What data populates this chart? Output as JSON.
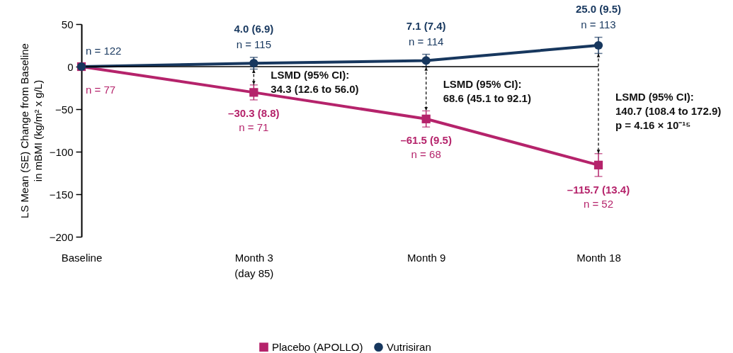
{
  "chart_data": {
    "type": "line",
    "ylabel": "LS Mean (SE) Change from Baseline\nin mBMI (kg/m² x g/L)",
    "categories": [
      "Baseline",
      "Month 3\n(day 85)",
      "Month 9",
      "Month 18"
    ],
    "ylim": [
      -200,
      50
    ],
    "yticks": [
      -200,
      -150,
      -100,
      -50,
      0,
      50
    ],
    "series": [
      {
        "name": "Placebo (APOLLO)",
        "color": "#b5236b",
        "marker": "square",
        "values": [
          0,
          -30.3,
          -61.5,
          -115.7
        ],
        "errors": [
          null,
          8.8,
          9.5,
          13.4
        ],
        "value_labels": [
          null,
          "–30.3 (8.8)",
          "–61.5 (9.5)",
          "–115.7 (13.4)"
        ]
      },
      {
        "name": "Vutrisiran",
        "color": "#17375e",
        "marker": "circle",
        "values": [
          0,
          4.0,
          7.1,
          25.0
        ],
        "errors": [
          null,
          6.9,
          7.4,
          9.5
        ],
        "value_labels": [
          null,
          "4.0 (6.9)",
          "7.1 (7.4)",
          "25.0 (9.5)"
        ]
      }
    ],
    "ref_lines": [
      {
        "axis": "y",
        "value": 0,
        "color": "#000000"
      }
    ],
    "annotations": [
      "n = 77",
      "n = 71",
      "n = 68",
      "n = 52",
      "n = 122",
      "n = 115",
      "n = 114",
      "n = 113",
      "LSMD (95% CI):\n34.3 (12.6 to 56.0)",
      "LSMD (95% CI):\n68.6 (45.1 to 92.1)",
      "LSMD (95% CI):\n140.7 (108.4 to 172.9)\np = 4.16 × 10⁻¹⁵"
    ],
    "grid": false,
    "legend": "bottom",
    "line_style": "solid"
  }
}
